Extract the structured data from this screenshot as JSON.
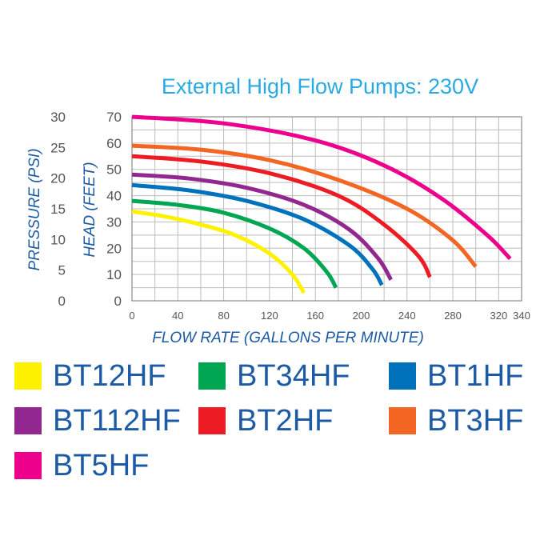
{
  "chart_data": {
    "type": "line",
    "title": "External High Flow Pumps: 230V",
    "xlabel": "FLOW RATE (GALLONS PER MINUTE)",
    "ylabel": "HEAD (FEET)",
    "y2label": "PRESSURE (PSI)",
    "xlim": [
      0,
      340
    ],
    "ylim": [
      0,
      70
    ],
    "x_ticks": [
      0,
      40,
      80,
      120,
      160,
      200,
      240,
      280,
      320,
      340
    ],
    "y_ticks": [
      0,
      10,
      20,
      30,
      40,
      50,
      60,
      70
    ],
    "pressure_ticks": [
      0,
      5,
      10,
      15,
      20,
      25,
      30
    ],
    "grid": true,
    "legend_position": "bottom",
    "series": [
      {
        "name": "BT12HF",
        "color": "#fff200",
        "x": [
          0,
          30,
          60,
          90,
          120,
          140,
          150
        ],
        "y": [
          34,
          32,
          29,
          25,
          18,
          10,
          3
        ]
      },
      {
        "name": "BT34HF",
        "color": "#00a651",
        "x": [
          0,
          40,
          80,
          120,
          150,
          170,
          178
        ],
        "y": [
          38,
          36.5,
          33.5,
          27.5,
          20,
          11,
          5
        ]
      },
      {
        "name": "BT1HF",
        "color": "#0072bc",
        "x": [
          0,
          50,
          100,
          150,
          190,
          210,
          218
        ],
        "y": [
          44,
          42,
          38,
          31,
          21,
          12,
          6
        ]
      },
      {
        "name": "BT112HF",
        "color": "#92278f",
        "x": [
          0,
          50,
          100,
          150,
          190,
          215,
          226
        ],
        "y": [
          48,
          46.5,
          43,
          36.5,
          27,
          16,
          8
        ]
      },
      {
        "name": "BT2HF",
        "color": "#ed1c24",
        "x": [
          0,
          60,
          120,
          180,
          220,
          250,
          260
        ],
        "y": [
          55,
          53,
          48.5,
          40,
          29,
          17,
          9
        ]
      },
      {
        "name": "BT3HF",
        "color": "#f26522",
        "x": [
          0,
          60,
          120,
          180,
          240,
          280,
          300
        ],
        "y": [
          59,
          57.5,
          53.5,
          46,
          35,
          23,
          13
        ]
      },
      {
        "name": "BT5HF",
        "color": "#ec008c",
        "x": [
          0,
          80,
          160,
          220,
          270,
          310,
          330
        ],
        "y": [
          70,
          67.5,
          61,
          51.5,
          39,
          25,
          16
        ]
      }
    ]
  }
}
